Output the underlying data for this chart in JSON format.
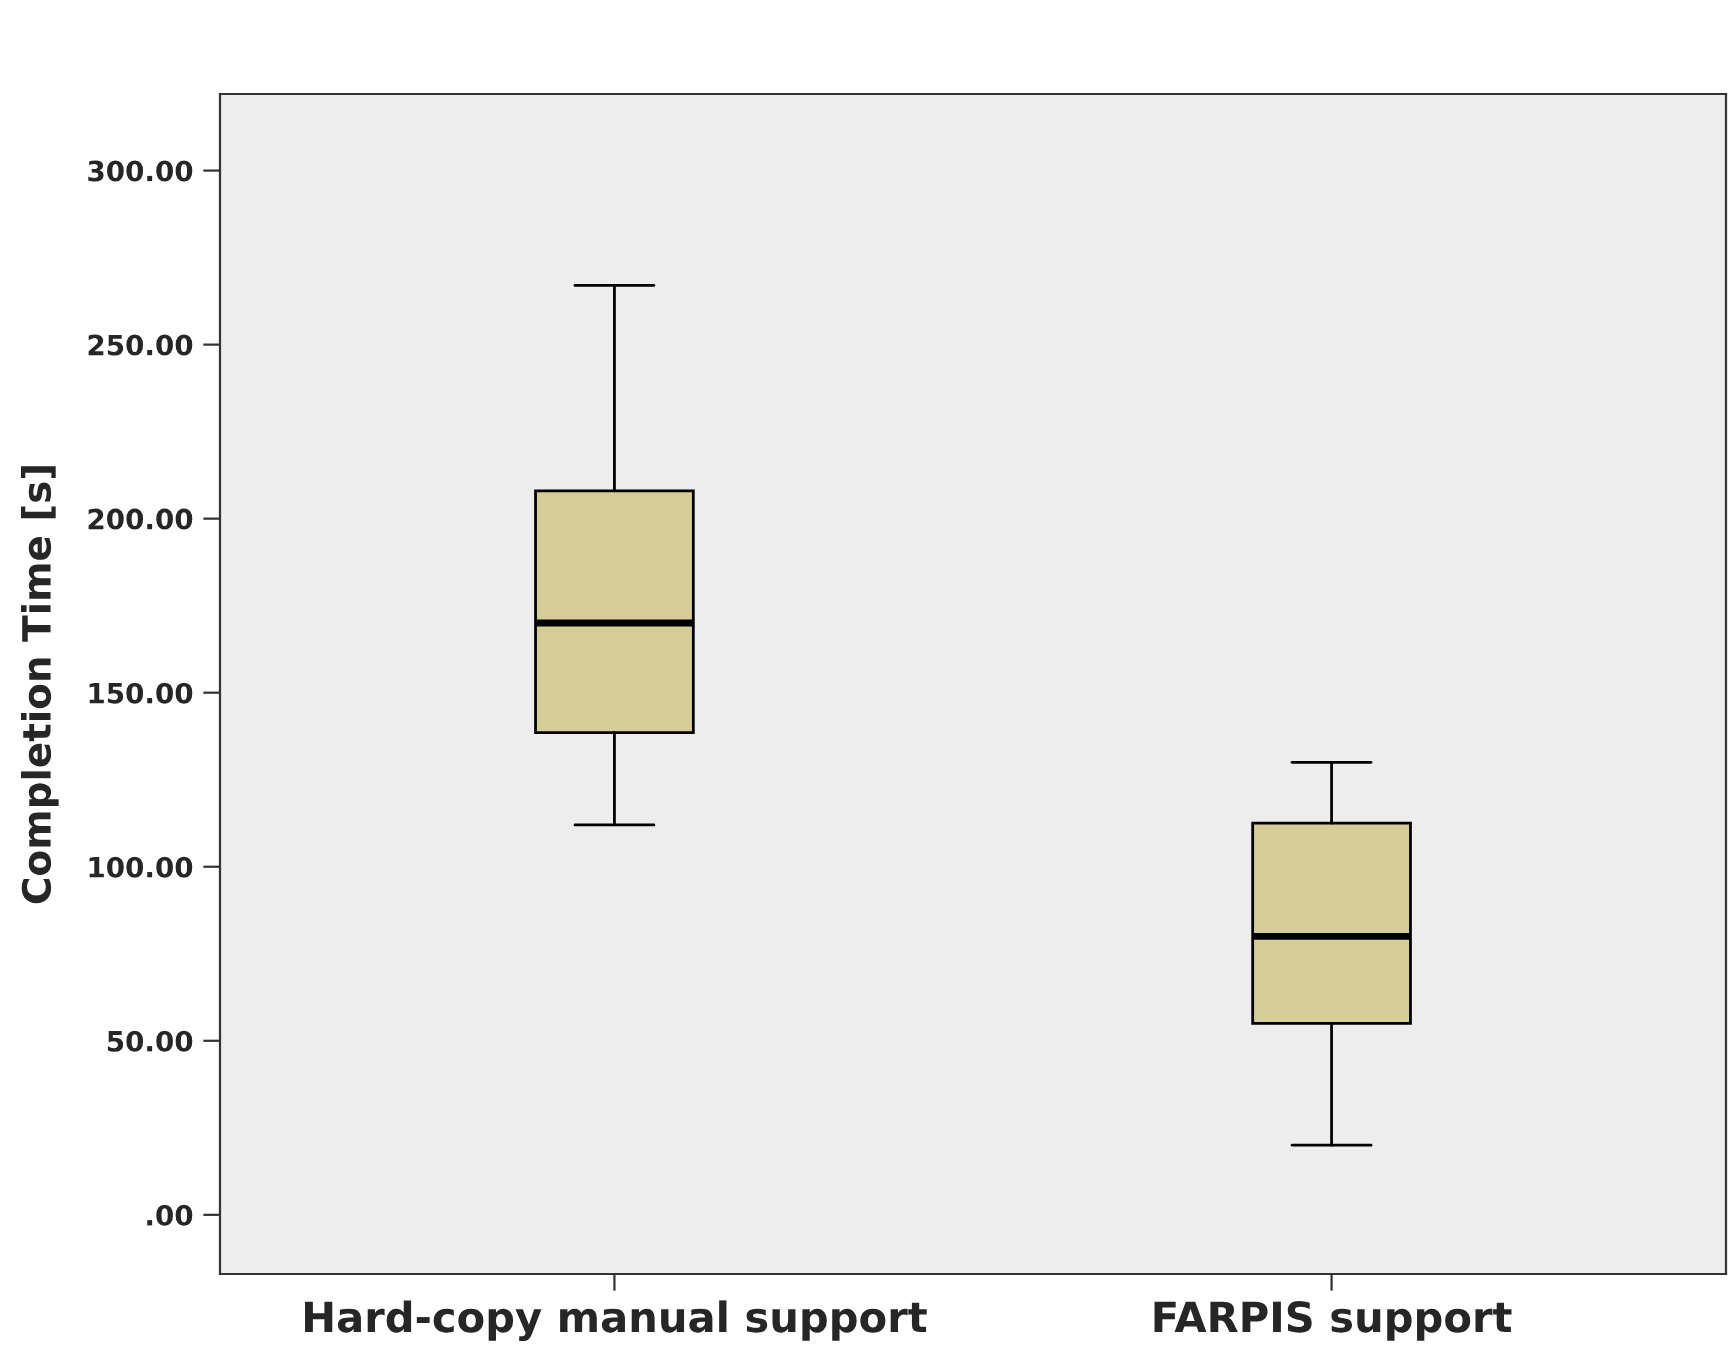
{
  "chart_data": {
    "type": "box",
    "ylabel": "Completion Time [s]",
    "categories": [
      "Hard-copy manual support",
      "FARPIS support"
    ],
    "boxes": [
      {
        "low": 112,
        "q1": 138.5,
        "median": 170,
        "q3": 208,
        "high": 267
      },
      {
        "low": 20,
        "q1": 55,
        "median": 80,
        "q3": 112.5,
        "high": 130
      }
    ],
    "color": "#d4cd98",
    "ylim": [
      -17,
      322
    ],
    "yticks": [
      {
        "value": 0,
        "label": ".00"
      },
      {
        "value": 50,
        "label": "50.00"
      },
      {
        "value": 100,
        "label": "100.00"
      },
      {
        "value": 150,
        "label": "150.00"
      },
      {
        "value": 200,
        "label": "200.00"
      },
      {
        "value": 250,
        "label": "250.00"
      },
      {
        "value": 300,
        "label": "300.00"
      }
    ],
    "grid": false
  }
}
